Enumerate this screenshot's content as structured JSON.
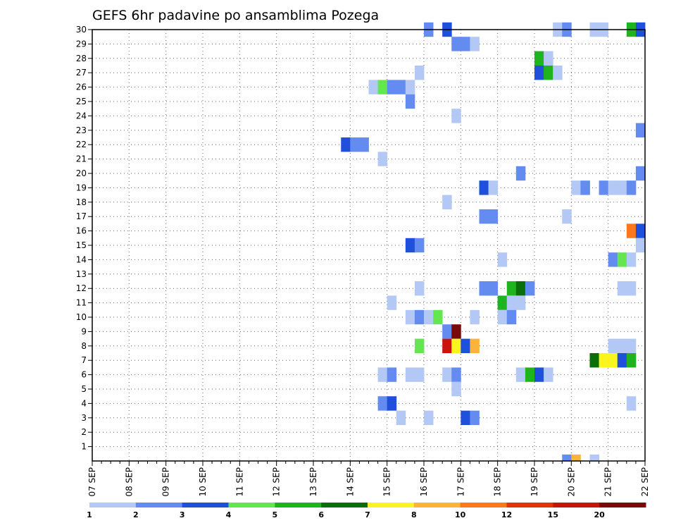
{
  "chart_data": {
    "type": "heatmap",
    "title": "GEFS 6hr padavine po ansamblima Pozega",
    "xlabel": "",
    "ylabel": "",
    "y_ticks": [
      "1",
      "2",
      "3",
      "4",
      "5",
      "6",
      "7",
      "8",
      "9",
      "10",
      "11",
      "12",
      "13",
      "14",
      "15",
      "16",
      "17",
      "18",
      "19",
      "20",
      "21",
      "22",
      "23",
      "24",
      "25",
      "26",
      "27",
      "28",
      "29",
      "30"
    ],
    "x_ticks": [
      "07 SEP",
      "08 SEP",
      "09 SEP",
      "10 SEP",
      "11 SEP",
      "12 SEP",
      "13 SEP",
      "14 SEP",
      "15 SEP",
      "16 SEP",
      "17 SEP",
      "18 SEP",
      "19 SEP",
      "20 SEP",
      "21 SEP",
      "22 SEP"
    ],
    "x_range_steps": [
      0,
      60
    ],
    "y_range": [
      0,
      30
    ],
    "grid": true,
    "legend": {
      "placement": "bottom",
      "labels": [
        "1",
        "2",
        "3",
        "4",
        "5",
        "6",
        "7",
        "8",
        "10",
        "12",
        "15",
        "20"
      ],
      "colors": [
        "#b4c8f5",
        "#648cf0",
        "#1e50dc",
        "#64e650",
        "#1eb41e",
        "#0a6e0a",
        "#faf51e",
        "#fab43c",
        "#fa781e",
        "#e6320a",
        "#c8140a",
        "#780a0a"
      ]
    },
    "cells": [
      {
        "m": 30,
        "s": 37,
        "level": 2
      },
      {
        "m": 30,
        "s": 39,
        "level": 3
      },
      {
        "m": 30,
        "s": 51,
        "level": 1
      },
      {
        "m": 30,
        "s": 52,
        "level": 2
      },
      {
        "m": 30,
        "s": 55,
        "level": 1
      },
      {
        "m": 30,
        "s": 56,
        "level": 1
      },
      {
        "m": 30,
        "s": 59,
        "level": 5
      },
      {
        "m": 30,
        "s": 60,
        "level": 3
      },
      {
        "m": 29,
        "s": 40,
        "level": 2
      },
      {
        "m": 29,
        "s": 41,
        "level": 2
      },
      {
        "m": 29,
        "s": 42,
        "level": 1
      },
      {
        "m": 28,
        "s": 49,
        "level": 5
      },
      {
        "m": 28,
        "s": 50,
        "level": 1
      },
      {
        "m": 27,
        "s": 36,
        "level": 1
      },
      {
        "m": 27,
        "s": 49,
        "level": 3
      },
      {
        "m": 27,
        "s": 50,
        "level": 5
      },
      {
        "m": 27,
        "s": 51,
        "level": 1
      },
      {
        "m": 26,
        "s": 31,
        "level": 1
      },
      {
        "m": 26,
        "s": 32,
        "level": 4
      },
      {
        "m": 26,
        "s": 33,
        "level": 2
      },
      {
        "m": 26,
        "s": 34,
        "level": 2
      },
      {
        "m": 26,
        "s": 35,
        "level": 1
      },
      {
        "m": 25,
        "s": 35,
        "level": 2
      },
      {
        "m": 24,
        "s": 40,
        "level": 1
      },
      {
        "m": 23,
        "s": 60,
        "level": 2
      },
      {
        "m": 22,
        "s": 28,
        "level": 3
      },
      {
        "m": 22,
        "s": 29,
        "level": 2
      },
      {
        "m": 22,
        "s": 30,
        "level": 2
      },
      {
        "m": 21,
        "s": 32,
        "level": 1
      },
      {
        "m": 20,
        "s": 47,
        "level": 2
      },
      {
        "m": 20,
        "s": 60,
        "level": 2
      },
      {
        "m": 19,
        "s": 43,
        "level": 3
      },
      {
        "m": 19,
        "s": 44,
        "level": 1
      },
      {
        "m": 19,
        "s": 53,
        "level": 1
      },
      {
        "m": 19,
        "s": 54,
        "level": 2
      },
      {
        "m": 19,
        "s": 56,
        "level": 2
      },
      {
        "m": 19,
        "s": 57,
        "level": 1
      },
      {
        "m": 19,
        "s": 58,
        "level": 1
      },
      {
        "m": 19,
        "s": 59,
        "level": 2
      },
      {
        "m": 18,
        "s": 39,
        "level": 1
      },
      {
        "m": 17,
        "s": 43,
        "level": 2
      },
      {
        "m": 17,
        "s": 44,
        "level": 2
      },
      {
        "m": 17,
        "s": 52,
        "level": 1
      },
      {
        "m": 16,
        "s": 59,
        "level": 10
      },
      {
        "m": 16,
        "s": 60,
        "level": 3
      },
      {
        "m": 15,
        "s": 35,
        "level": 3
      },
      {
        "m": 15,
        "s": 36,
        "level": 2
      },
      {
        "m": 15,
        "s": 60,
        "level": 1
      },
      {
        "m": 14,
        "s": 45,
        "level": 1
      },
      {
        "m": 14,
        "s": 57,
        "level": 2
      },
      {
        "m": 14,
        "s": 58,
        "level": 4
      },
      {
        "m": 14,
        "s": 59,
        "level": 1
      },
      {
        "m": 12,
        "s": 36,
        "level": 1
      },
      {
        "m": 12,
        "s": 43,
        "level": 2
      },
      {
        "m": 12,
        "s": 44,
        "level": 2
      },
      {
        "m": 12,
        "s": 46,
        "level": 5
      },
      {
        "m": 12,
        "s": 47,
        "level": 6
      },
      {
        "m": 12,
        "s": 48,
        "level": 2
      },
      {
        "m": 12,
        "s": 58,
        "level": 1
      },
      {
        "m": 12,
        "s": 59,
        "level": 1
      },
      {
        "m": 11,
        "s": 33,
        "level": 1
      },
      {
        "m": 11,
        "s": 45,
        "level": 5
      },
      {
        "m": 11,
        "s": 46,
        "level": 1
      },
      {
        "m": 11,
        "s": 47,
        "level": 1
      },
      {
        "m": 10,
        "s": 35,
        "level": 1
      },
      {
        "m": 10,
        "s": 36,
        "level": 2
      },
      {
        "m": 10,
        "s": 37,
        "level": 1
      },
      {
        "m": 10,
        "s": 38,
        "level": 4
      },
      {
        "m": 10,
        "s": 42,
        "level": 1
      },
      {
        "m": 10,
        "s": 45,
        "level": 1
      },
      {
        "m": 10,
        "s": 46,
        "level": 2
      },
      {
        "m": 9,
        "s": 39,
        "level": 2
      },
      {
        "m": 9,
        "s": 40,
        "level": 20
      },
      {
        "m": 8,
        "s": 36,
        "level": 4
      },
      {
        "m": 8,
        "s": 39,
        "level": 15
      },
      {
        "m": 8,
        "s": 40,
        "level": 7
      },
      {
        "m": 8,
        "s": 41,
        "level": 3
      },
      {
        "m": 8,
        "s": 42,
        "level": 8
      },
      {
        "m": 8,
        "s": 57,
        "level": 1
      },
      {
        "m": 8,
        "s": 58,
        "level": 1
      },
      {
        "m": 8,
        "s": 59,
        "level": 1
      },
      {
        "m": 7,
        "s": 55,
        "level": 6
      },
      {
        "m": 7,
        "s": 56,
        "level": 7
      },
      {
        "m": 7,
        "s": 57,
        "level": 7
      },
      {
        "m": 7,
        "s": 58,
        "level": 3
      },
      {
        "m": 7,
        "s": 59,
        "level": 5
      },
      {
        "m": 6,
        "s": 32,
        "level": 1
      },
      {
        "m": 6,
        "s": 33,
        "level": 2
      },
      {
        "m": 6,
        "s": 35,
        "level": 1
      },
      {
        "m": 6,
        "s": 36,
        "level": 1
      },
      {
        "m": 6,
        "s": 39,
        "level": 1
      },
      {
        "m": 6,
        "s": 40,
        "level": 2
      },
      {
        "m": 6,
        "s": 47,
        "level": 1
      },
      {
        "m": 6,
        "s": 48,
        "level": 5
      },
      {
        "m": 6,
        "s": 49,
        "level": 3
      },
      {
        "m": 6,
        "s": 50,
        "level": 1
      },
      {
        "m": 5,
        "s": 40,
        "level": 1
      },
      {
        "m": 4,
        "s": 32,
        "level": 2
      },
      {
        "m": 4,
        "s": 33,
        "level": 3
      },
      {
        "m": 4,
        "s": 59,
        "level": 1
      },
      {
        "m": 3,
        "s": 34,
        "level": 1
      },
      {
        "m": 3,
        "s": 37,
        "level": 1
      },
      {
        "m": 3,
        "s": 41,
        "level": 3
      },
      {
        "m": 3,
        "s": 42,
        "level": 2
      },
      {
        "m": 0,
        "s": 52,
        "level": 2
      },
      {
        "m": 0,
        "s": 53,
        "level": 8
      },
      {
        "m": 0,
        "s": 55,
        "level": 1
      }
    ]
  }
}
